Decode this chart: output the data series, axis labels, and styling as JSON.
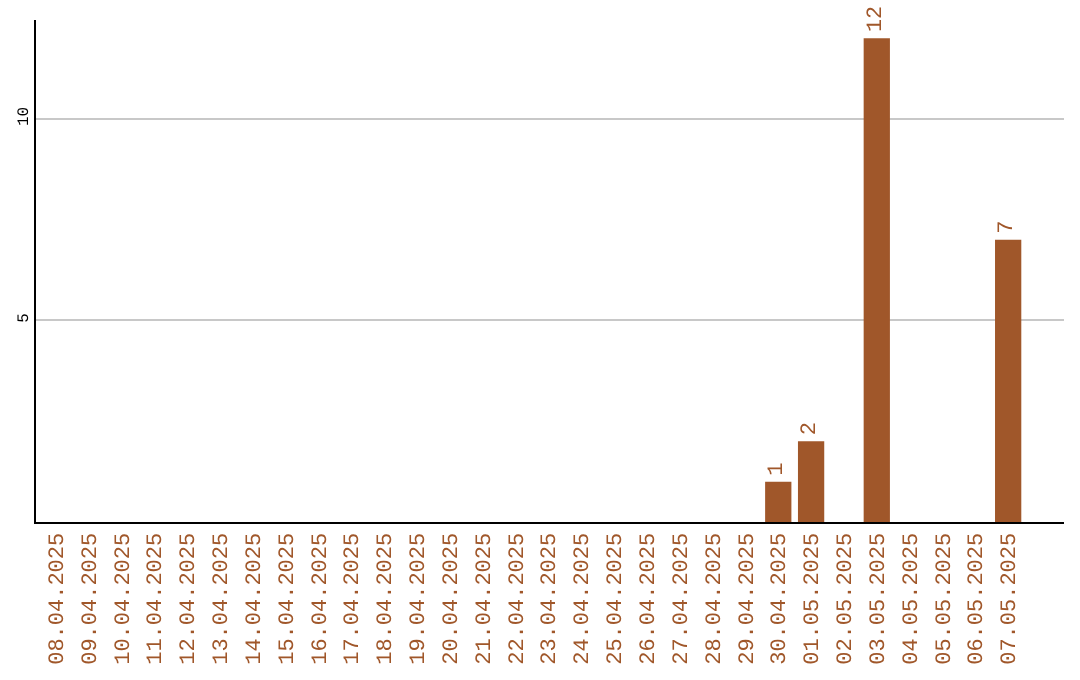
{
  "chart_data": {
    "type": "bar",
    "categories": [
      "08.04.2025",
      "09.04.2025",
      "10.04.2025",
      "11.04.2025",
      "12.04.2025",
      "13.04.2025",
      "14.04.2025",
      "15.04.2025",
      "16.04.2025",
      "17.04.2025",
      "18.04.2025",
      "19.04.2025",
      "20.04.2025",
      "21.04.2025",
      "22.04.2025",
      "23.04.2025",
      "24.04.2025",
      "25.04.2025",
      "26.04.2025",
      "27.04.2025",
      "28.04.2025",
      "29.04.2025",
      "30.04.2025",
      "01.05.2025",
      "02.05.2025",
      "03.05.2025",
      "04.05.2025",
      "05.05.2025",
      "06.05.2025",
      "07.05.2025"
    ],
    "values": [
      0,
      0,
      0,
      0,
      0,
      0,
      0,
      0,
      0,
      0,
      0,
      0,
      0,
      0,
      0,
      0,
      0,
      0,
      0,
      0,
      0,
      0,
      1,
      2,
      0,
      12,
      0,
      0,
      0,
      7
    ],
    "value_labels": [
      null,
      null,
      null,
      null,
      null,
      null,
      null,
      null,
      null,
      null,
      null,
      null,
      null,
      null,
      null,
      null,
      null,
      null,
      null,
      null,
      null,
      null,
      "1",
      "2",
      null,
      "12",
      null,
      null,
      null,
      "7"
    ],
    "color": "#a0572a",
    "ylim": [
      0,
      12.45
    ],
    "yticks": [
      5,
      10
    ],
    "grid": "y",
    "legend": false
  }
}
